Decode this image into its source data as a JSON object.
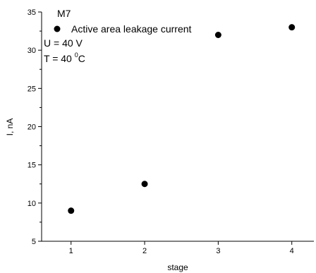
{
  "chart_data": {
    "type": "scatter",
    "xlabel": "stage",
    "ylabel": "I, nA",
    "xlim": [
      0.6,
      4.3
    ],
    "ylim": [
      5,
      35
    ],
    "xticks": [
      1,
      2,
      3,
      4
    ],
    "yticks": [
      5,
      10,
      15,
      20,
      25,
      30,
      35
    ],
    "grid": false,
    "legend_position": "top-left",
    "series": [
      {
        "name": "Active area leakage current",
        "color": "#000000",
        "x": [
          1,
          2,
          3,
          4
        ],
        "y": [
          9.0,
          12.5,
          32.0,
          33.0
        ]
      }
    ],
    "annotations": {
      "sample": "M7",
      "voltage": "U = 40 V",
      "temp_prefix": "T = 40 ",
      "temp_degree": "0",
      "temp_unit": "C"
    }
  }
}
